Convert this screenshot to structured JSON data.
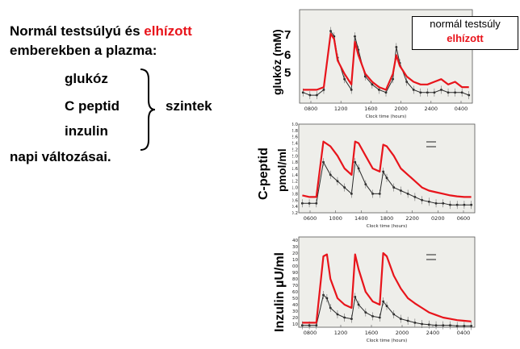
{
  "left": {
    "line1_black": "Normál testsúlyú és ",
    "line1_red": "elhízott",
    "line2": "emberekben a plazma:",
    "items": [
      "glukóz",
      "C peptid",
      "inzulin"
    ],
    "group_label": "szintek",
    "line_last": "napi változásai."
  },
  "legend": {
    "normal": "normál testsúly",
    "obese": "elhízott"
  },
  "colors": {
    "normal": "#2a2a2a",
    "obese": "#e8141b",
    "panel_bg": "#eeeeea"
  },
  "chart_data": [
    {
      "type": "line",
      "ylabel": "glukóz (mM)",
      "xlabel": "Clock time (hours)",
      "y_ticks": [
        "7",
        "6",
        "5"
      ],
      "x_ticks": [
        "0800",
        "1200",
        "1600",
        "2000",
        "2400",
        "0400"
      ],
      "ylim": [
        4.5,
        8
      ],
      "x": [
        5,
        6,
        7,
        8,
        9,
        9.5,
        10,
        11,
        12,
        12.5,
        13,
        14,
        15,
        16,
        17,
        18,
        18.5,
        19,
        20,
        21,
        22,
        23,
        24,
        25,
        26,
        27,
        28,
        29
      ],
      "series": [
        {
          "name": "normál testsúly",
          "values": [
            4.9,
            4.8,
            4.8,
            5.0,
            7.2,
            7.0,
            6.2,
            5.4,
            5.0,
            7.0,
            6.5,
            5.5,
            5.2,
            5.0,
            4.9,
            5.4,
            6.6,
            6.0,
            5.3,
            5.0,
            4.9,
            4.9,
            4.9,
            5.0,
            4.9,
            4.9,
            4.9,
            4.8
          ]
        },
        {
          "name": "elhízott",
          "values": [
            5.0,
            5.0,
            5.0,
            5.1,
            7.1,
            6.9,
            6.1,
            5.6,
            5.2,
            6.8,
            6.3,
            5.6,
            5.3,
            5.1,
            5.0,
            5.6,
            6.3,
            5.9,
            5.5,
            5.3,
            5.2,
            5.2,
            5.3,
            5.4,
            5.2,
            5.3,
            5.1,
            5.1
          ]
        }
      ]
    },
    {
      "type": "line",
      "ylabel": "C-peptid pmol/ml",
      "xlabel": "Clock time (hours)",
      "y_ticks": [
        "3.0",
        "2.8",
        "2.6",
        "2.4",
        "2.2",
        "2.0",
        "1.8",
        "1.6",
        "1.4",
        "1.2",
        "1.0",
        "0.8",
        "0.6",
        "0.4",
        "0.2"
      ],
      "x_ticks": [
        "0600",
        "1000",
        "1400",
        "1800",
        "2200",
        "0200",
        "0600"
      ],
      "ylim": [
        0.2,
        3.0
      ],
      "x": [
        5,
        6,
        7,
        8,
        9,
        10,
        11,
        12,
        12.5,
        13,
        14,
        15,
        16,
        16.5,
        17,
        18,
        19,
        20,
        21,
        22,
        23,
        24,
        25,
        26,
        27,
        28,
        29
      ],
      "series": [
        {
          "name": "normál testsúly",
          "values": [
            0.5,
            0.5,
            0.5,
            1.8,
            1.4,
            1.2,
            1.0,
            0.8,
            1.8,
            1.6,
            1.1,
            0.8,
            0.8,
            1.5,
            1.3,
            1.0,
            0.9,
            0.8,
            0.7,
            0.6,
            0.55,
            0.5,
            0.5,
            0.45,
            0.45,
            0.45,
            0.45
          ]
        },
        {
          "name": "elhízott",
          "values": [
            0.75,
            0.7,
            0.7,
            2.45,
            2.3,
            2.0,
            1.6,
            1.4,
            2.45,
            2.4,
            2.0,
            1.6,
            1.5,
            2.35,
            2.3,
            2.0,
            1.6,
            1.4,
            1.2,
            1.0,
            0.9,
            0.85,
            0.8,
            0.75,
            0.72,
            0.7,
            0.7
          ]
        }
      ]
    },
    {
      "type": "line",
      "ylabel": "Inzulin µU/ml",
      "xlabel": "Clock time (hours)",
      "y_ticks": [
        "140",
        "130",
        "120",
        "110",
        "100",
        "90",
        "80",
        "70",
        "60",
        "50",
        "40",
        "30",
        "20",
        "10"
      ],
      "x_ticks": [
        "0800",
        "1200",
        "1600",
        "2000",
        "2400",
        "0400"
      ],
      "ylim": [
        5,
        145
      ],
      "x": [
        5,
        6,
        7,
        8,
        8.5,
        9,
        10,
        11,
        12,
        12.5,
        13,
        14,
        15,
        16,
        16.5,
        17,
        18,
        19,
        20,
        21,
        22,
        23,
        24,
        25,
        26,
        27,
        28,
        29
      ],
      "series": [
        {
          "name": "normál testsúly",
          "values": [
            8,
            8,
            8,
            55,
            50,
            35,
            25,
            20,
            18,
            52,
            40,
            28,
            22,
            20,
            45,
            38,
            25,
            18,
            15,
            12,
            10,
            9,
            8,
            8,
            8,
            7,
            7,
            7
          ]
        },
        {
          "name": "elhízott",
          "values": [
            12,
            12,
            12,
            115,
            118,
            80,
            50,
            40,
            35,
            118,
            95,
            60,
            45,
            40,
            120,
            115,
            85,
            65,
            50,
            42,
            35,
            28,
            24,
            20,
            18,
            16,
            15,
            14
          ]
        }
      ]
    }
  ]
}
